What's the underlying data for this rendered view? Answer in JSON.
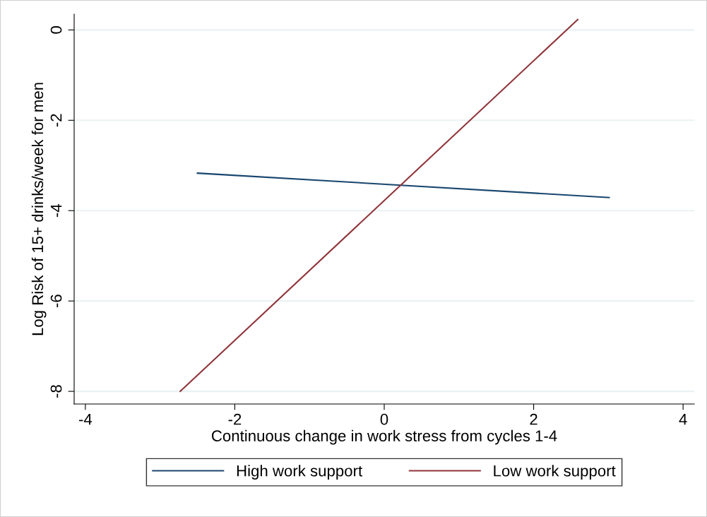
{
  "chart_data": {
    "type": "line",
    "xlabel": "Continuous change in work stress from cycles 1-4",
    "ylabel": "Log Risk of 15+ drinks/week for men",
    "series": [
      {
        "name": "High work support",
        "color": "#1a476f",
        "x": [
          -2.5,
          3.01
        ],
        "values": [
          -3.17,
          -3.71
        ]
      },
      {
        "name": "Low work support",
        "color": "#90353b",
        "x": [
          -2.73,
          2.59
        ],
        "values": [
          -8.0,
          0.23
        ]
      }
    ],
    "xlim": [
      -4.15,
      4.15
    ],
    "xticks": [
      -4,
      -2,
      0,
      2,
      4
    ],
    "ylim": [
      -8.28,
      0.35
    ],
    "yticks": [
      -8,
      -6,
      -4,
      -2,
      0
    ],
    "grid": "y",
    "legend": "bottom",
    "marker": "none",
    "line_style": "solid"
  }
}
